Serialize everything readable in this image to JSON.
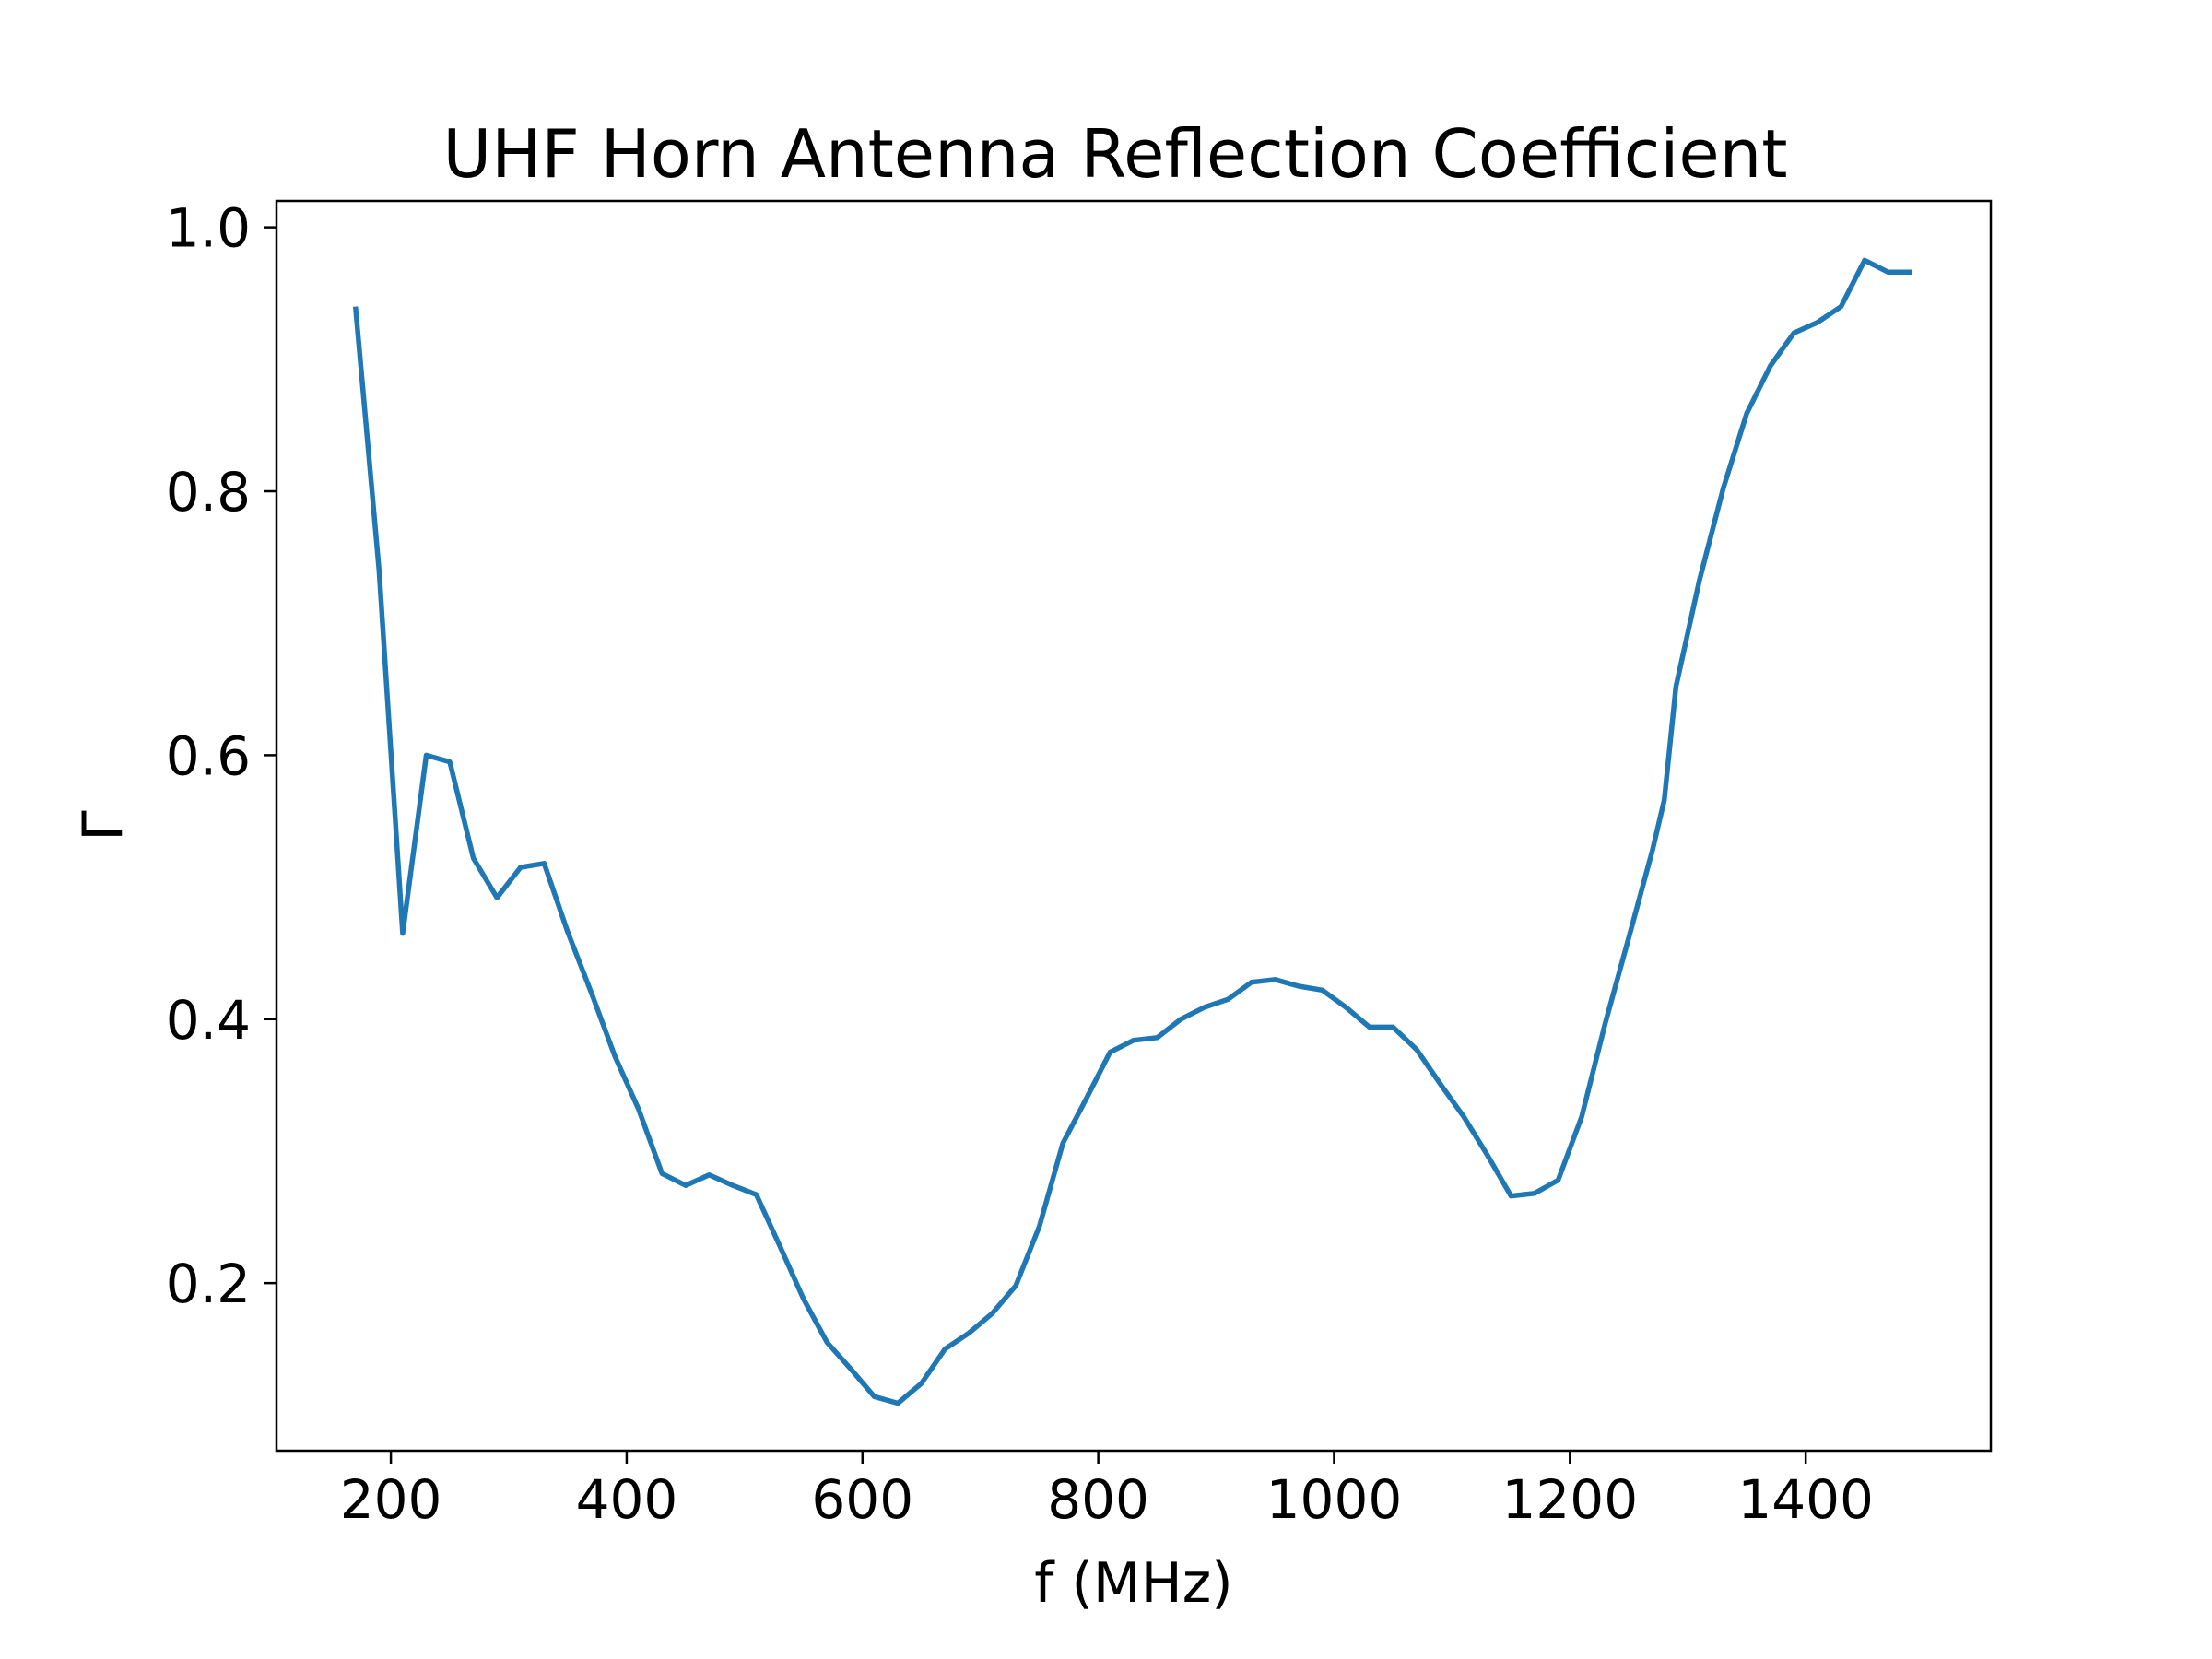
{
  "chart_data": {
    "type": "line",
    "title": "UHF Horn Antenna Reflection Coefficient",
    "xlabel": "f (MHz)",
    "ylabel": "Γ",
    "xlim": [
      103,
      1557
    ],
    "ylim": [
      0.073,
      1.02
    ],
    "xticks": [
      200,
      400,
      600,
      800,
      1000,
      1200,
      1400
    ],
    "yticks": [
      0.2,
      0.4,
      0.6,
      0.8,
      1.0
    ],
    "xtick_labels": [
      "200",
      "400",
      "600",
      "800",
      "1000",
      "1200",
      "1400"
    ],
    "ytick_labels": [
      "0.2",
      "0.4",
      "0.6",
      "0.8",
      "1.0"
    ],
    "grid": false,
    "legend": "none",
    "line_color": "#1f77b4",
    "series": [
      {
        "x": [
          170,
          190,
          210,
          230,
          250,
          270,
          290,
          310,
          330,
          350,
          370,
          390,
          410,
          430,
          450,
          470,
          490,
          510,
          530,
          550,
          570,
          590,
          610,
          630,
          650,
          670,
          690,
          710,
          730,
          750,
          770,
          790,
          810,
          830,
          850,
          870,
          890,
          910,
          930,
          950,
          970,
          990,
          1010,
          1030,
          1050,
          1070,
          1090,
          1110,
          1130,
          1150,
          1170,
          1190,
          1210,
          1230,
          1250,
          1270,
          1280,
          1290,
          1310,
          1330,
          1350,
          1370,
          1390,
          1410,
          1430,
          1450,
          1470,
          1490
        ],
        "y": [
          0.94,
          0.74,
          0.465,
          0.6,
          0.595,
          0.522,
          0.492,
          0.515,
          0.518,
          0.466,
          0.42,
          0.372,
          0.332,
          0.283,
          0.274,
          0.282,
          0.274,
          0.267,
          0.228,
          0.188,
          0.155,
          0.135,
          0.114,
          0.109,
          0.124,
          0.15,
          0.162,
          0.177,
          0.198,
          0.243,
          0.306,
          0.34,
          0.375,
          0.384,
          0.386,
          0.4,
          0.409,
          0.415,
          0.428,
          0.43,
          0.425,
          0.422,
          0.409,
          0.394,
          0.394,
          0.377,
          0.351,
          0.326,
          0.297,
          0.266,
          0.268,
          0.278,
          0.326,
          0.397,
          0.462,
          0.528,
          0.566,
          0.652,
          0.733,
          0.802,
          0.859,
          0.895,
          0.92,
          0.928,
          0.94,
          0.975,
          0.966,
          0.966
        ]
      }
    ]
  }
}
